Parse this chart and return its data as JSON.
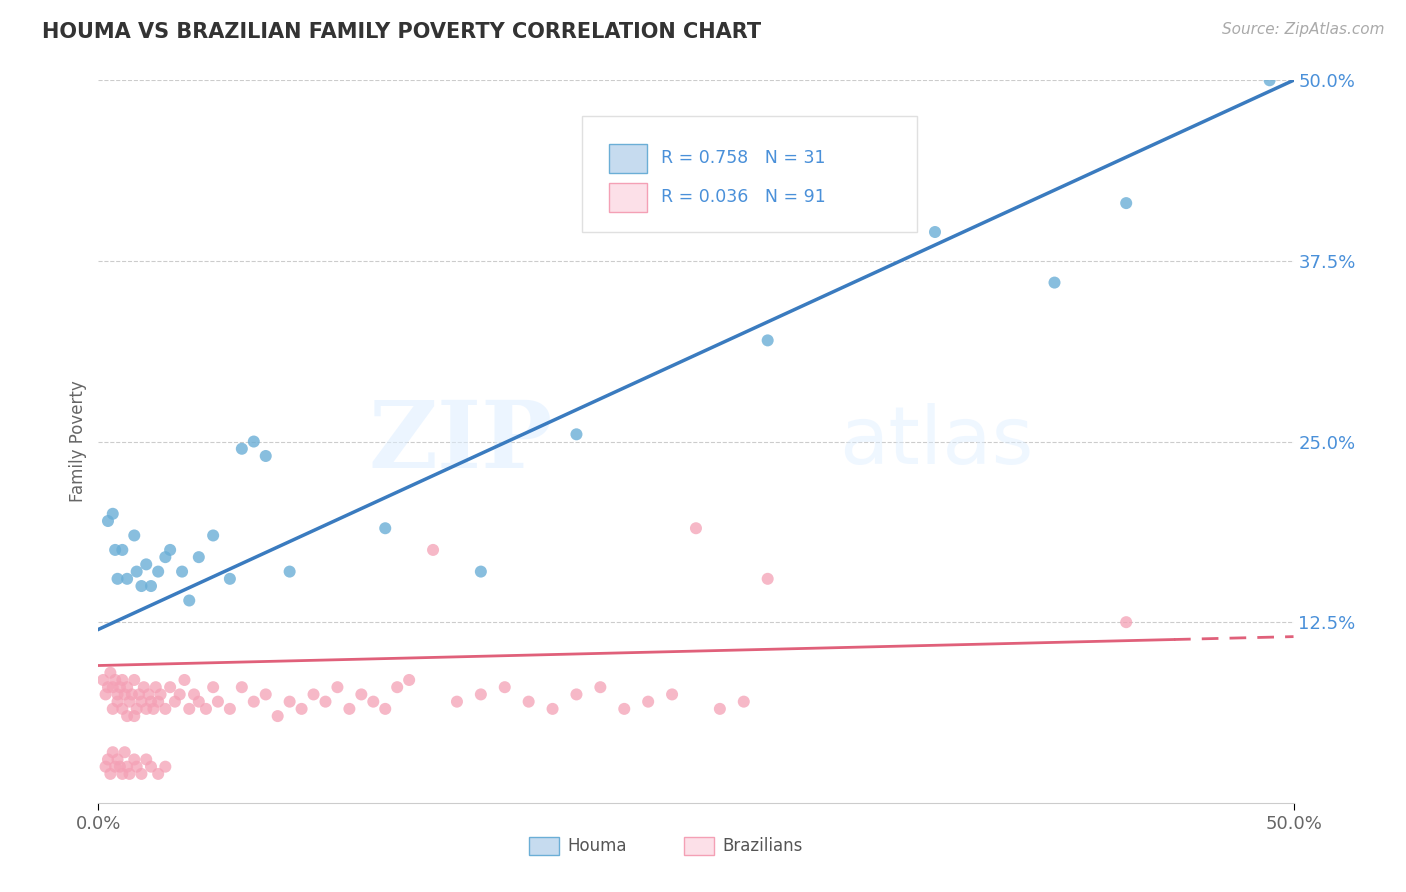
{
  "title": "HOUMA VS BRAZILIAN FAMILY POVERTY CORRELATION CHART",
  "source": "Source: ZipAtlas.com",
  "xlim": [
    0.0,
    0.5
  ],
  "ylim": [
    0.0,
    0.5
  ],
  "houma_R": 0.758,
  "houma_N": 31,
  "brazilian_R": 0.036,
  "brazilian_N": 91,
  "houma_color": "#6baed6",
  "houma_fill": "#c6dbef",
  "brazilian_color": "#f4a0b5",
  "brazilian_fill": "#fce0e8",
  "regression_blue": "#3a7bbf",
  "regression_pink": "#e0607a",
  "tick_color": "#4a90d9",
  "watermark_zip": "ZIP",
  "watermark_atlas": "atlas",
  "legend_label_houma": "Houma",
  "legend_label_brazilian": "Brazilians",
  "houma_x": [
    0.004,
    0.006,
    0.007,
    0.008,
    0.01,
    0.012,
    0.015,
    0.016,
    0.018,
    0.02,
    0.022,
    0.025,
    0.028,
    0.03,
    0.035,
    0.038,
    0.042,
    0.048,
    0.055,
    0.06,
    0.065,
    0.07,
    0.08,
    0.12,
    0.16,
    0.2,
    0.28,
    0.35,
    0.4,
    0.43,
    0.49
  ],
  "houma_y": [
    0.195,
    0.2,
    0.175,
    0.155,
    0.175,
    0.155,
    0.185,
    0.16,
    0.15,
    0.165,
    0.15,
    0.16,
    0.17,
    0.175,
    0.16,
    0.14,
    0.17,
    0.185,
    0.155,
    0.245,
    0.25,
    0.24,
    0.16,
    0.19,
    0.16,
    0.255,
    0.32,
    0.395,
    0.36,
    0.415,
    0.5
  ],
  "brazilian_x": [
    0.002,
    0.003,
    0.004,
    0.005,
    0.006,
    0.006,
    0.007,
    0.008,
    0.008,
    0.009,
    0.01,
    0.01,
    0.011,
    0.012,
    0.012,
    0.013,
    0.014,
    0.015,
    0.015,
    0.016,
    0.017,
    0.018,
    0.019,
    0.02,
    0.021,
    0.022,
    0.023,
    0.024,
    0.025,
    0.026,
    0.028,
    0.03,
    0.032,
    0.034,
    0.036,
    0.038,
    0.04,
    0.042,
    0.045,
    0.048,
    0.05,
    0.055,
    0.06,
    0.065,
    0.07,
    0.075,
    0.08,
    0.085,
    0.09,
    0.095,
    0.1,
    0.105,
    0.11,
    0.115,
    0.12,
    0.125,
    0.13,
    0.14,
    0.15,
    0.16,
    0.17,
    0.18,
    0.19,
    0.2,
    0.21,
    0.22,
    0.23,
    0.24,
    0.25,
    0.26,
    0.27,
    0.28,
    0.003,
    0.004,
    0.005,
    0.006,
    0.007,
    0.008,
    0.009,
    0.01,
    0.011,
    0.012,
    0.013,
    0.015,
    0.016,
    0.018,
    0.02,
    0.022,
    0.025,
    0.028,
    0.43
  ],
  "brazilian_y": [
    0.085,
    0.075,
    0.08,
    0.09,
    0.08,
    0.065,
    0.085,
    0.075,
    0.07,
    0.08,
    0.085,
    0.065,
    0.075,
    0.08,
    0.06,
    0.07,
    0.075,
    0.085,
    0.06,
    0.065,
    0.075,
    0.07,
    0.08,
    0.065,
    0.075,
    0.07,
    0.065,
    0.08,
    0.07,
    0.075,
    0.065,
    0.08,
    0.07,
    0.075,
    0.085,
    0.065,
    0.075,
    0.07,
    0.065,
    0.08,
    0.07,
    0.065,
    0.08,
    0.07,
    0.075,
    0.06,
    0.07,
    0.065,
    0.075,
    0.07,
    0.08,
    0.065,
    0.075,
    0.07,
    0.065,
    0.08,
    0.085,
    0.175,
    0.07,
    0.075,
    0.08,
    0.07,
    0.065,
    0.075,
    0.08,
    0.065,
    0.07,
    0.075,
    0.19,
    0.065,
    0.07,
    0.155,
    0.025,
    0.03,
    0.02,
    0.035,
    0.025,
    0.03,
    0.025,
    0.02,
    0.035,
    0.025,
    0.02,
    0.03,
    0.025,
    0.02,
    0.03,
    0.025,
    0.02,
    0.025,
    0.125
  ],
  "houma_line": [
    0.0,
    0.5,
    0.12,
    0.5
  ],
  "brazilian_line": [
    0.0,
    0.5,
    0.095,
    0.115
  ]
}
